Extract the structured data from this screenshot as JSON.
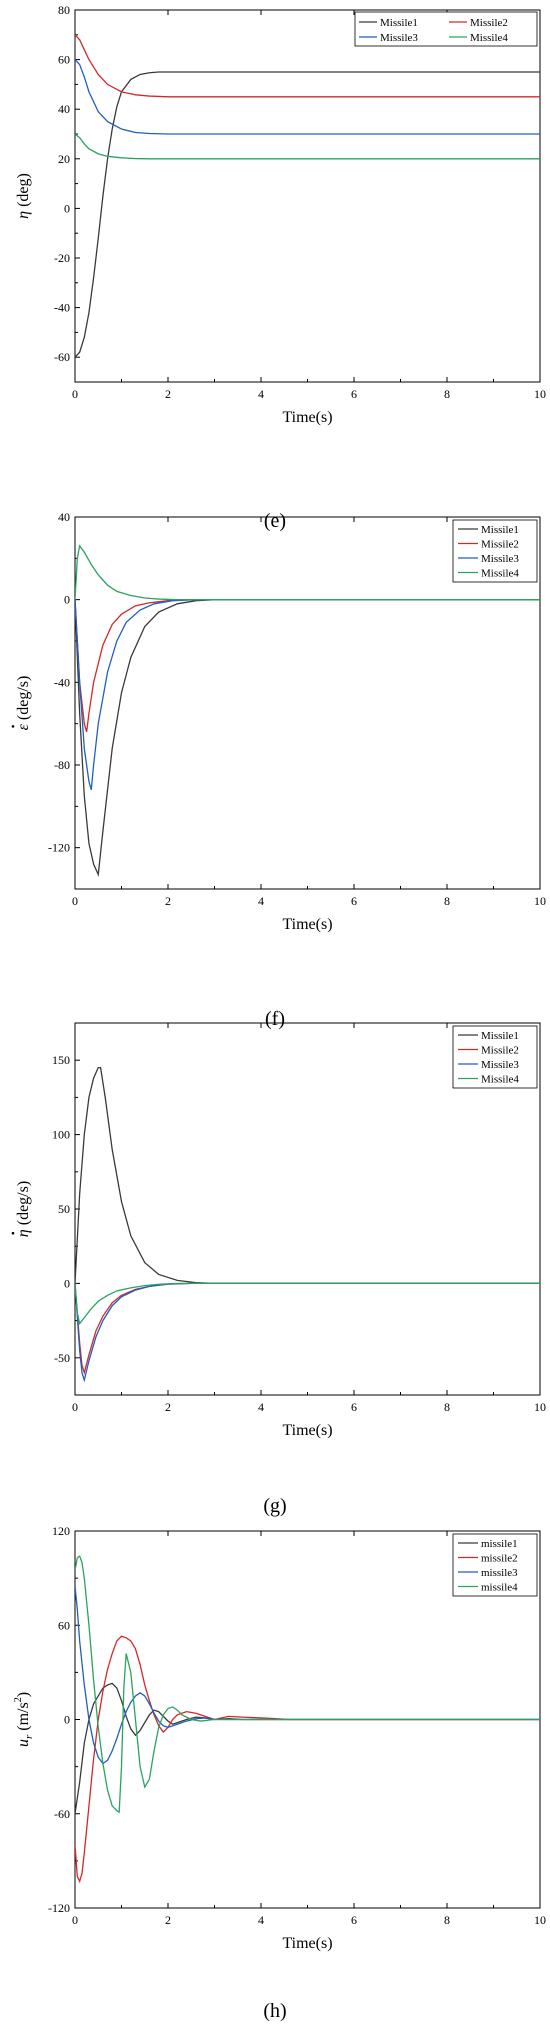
{
  "chart_data": [
    {
      "type": "line",
      "caption": "(e)",
      "xlabel": "Time(s)",
      "ylabel_main": "η",
      "ylabel_dot": false,
      "ylabel_sup": "",
      "ylabel_unit": " (deg)",
      "xlim": [
        0,
        10
      ],
      "ylim": [
        -70,
        80
      ],
      "xticks": [
        "0",
        "2",
        "4",
        "6",
        "8",
        "10"
      ],
      "yticks": [
        {
          "v": 80,
          "label": "80"
        },
        {
          "v": 60,
          "label": "60"
        },
        {
          "v": 40,
          "label": "40"
        },
        {
          "v": 20,
          "label": "20"
        },
        {
          "v": 0,
          "label": "0"
        },
        {
          "v": -20,
          "label": "-20"
        },
        {
          "v": -40,
          "label": "-40"
        },
        {
          "v": -60,
          "label": "-60"
        }
      ],
      "legend_layout": "2x2",
      "legend_position": "top-right",
      "series": [
        {
          "name": "Missile1",
          "color": "#3a3a3a",
          "x": [
            0,
            0.1,
            0.2,
            0.3,
            0.4,
            0.5,
            0.6,
            0.7,
            0.8,
            0.9,
            1.0,
            1.2,
            1.4,
            1.6,
            1.8,
            2.0,
            2.5,
            3,
            10
          ],
          "y": [
            -60,
            -58,
            -52,
            -42,
            -28,
            -12,
            5,
            20,
            32,
            41,
            47,
            52,
            54,
            54.7,
            55,
            55,
            55,
            55,
            55
          ]
        },
        {
          "name": "Missile2",
          "color": "#d62728",
          "x": [
            0,
            0.1,
            0.2,
            0.3,
            0.5,
            0.7,
            1.0,
            1.3,
            1.6,
            2.0,
            3,
            10
          ],
          "y": [
            70,
            68,
            64,
            60,
            54,
            50,
            47,
            45.8,
            45.3,
            45,
            45,
            45
          ]
        },
        {
          "name": "Missile3",
          "color": "#1f5fbf",
          "x": [
            0,
            0.1,
            0.2,
            0.3,
            0.5,
            0.7,
            1.0,
            1.3,
            1.6,
            2.0,
            3,
            10
          ],
          "y": [
            60,
            58,
            53,
            47,
            39,
            35,
            32,
            30.6,
            30.2,
            30,
            30,
            30
          ]
        },
        {
          "name": "Missile4",
          "color": "#2ca25f",
          "x": [
            0,
            0.1,
            0.2,
            0.3,
            0.5,
            0.7,
            1.0,
            1.3,
            1.6,
            2.0,
            3,
            10
          ],
          "y": [
            30,
            28.5,
            26,
            24,
            22,
            21,
            20.4,
            20.1,
            20,
            20,
            20,
            20
          ]
        }
      ]
    },
    {
      "type": "line",
      "caption": "(f)",
      "xlabel": "Time(s)",
      "ylabel_main": "ε",
      "ylabel_dot": true,
      "ylabel_sup": "",
      "ylabel_unit": " (deg/s)",
      "xlim": [
        0,
        10
      ],
      "ylim": [
        -140,
        40
      ],
      "xticks": [
        "0",
        "2",
        "4",
        "6",
        "8",
        "10"
      ],
      "yticks": [
        {
          "v": 40,
          "label": "40"
        },
        {
          "v": 0,
          "label": "0"
        },
        {
          "v": -40,
          "label": "-40"
        },
        {
          "v": -80,
          "label": "-80"
        },
        {
          "v": -120,
          "label": "-120"
        }
      ],
      "legend_layout": "4x1",
      "legend_position": "top-right",
      "series": [
        {
          "name": "Missile1",
          "color": "#3a3a3a",
          "x": [
            0,
            0.1,
            0.2,
            0.3,
            0.4,
            0.5,
            0.6,
            0.8,
            1.0,
            1.2,
            1.5,
            1.8,
            2.2,
            2.6,
            3,
            10
          ],
          "y": [
            0,
            -55,
            -95,
            -118,
            -128,
            -133,
            -112,
            -72,
            -45,
            -28,
            -13,
            -6,
            -2,
            -0.5,
            0,
            0
          ]
        },
        {
          "name": "Missile2",
          "color": "#d62728",
          "x": [
            0,
            0.1,
            0.2,
            0.25,
            0.3,
            0.4,
            0.6,
            0.8,
            1.0,
            1.3,
            1.6,
            2.0,
            2.5,
            3,
            10
          ],
          "y": [
            0,
            -40,
            -60,
            -64,
            -55,
            -40,
            -22,
            -12,
            -7,
            -3,
            -1.5,
            -0.5,
            0,
            0,
            0
          ]
        },
        {
          "name": "Missile3",
          "color": "#1f5fbf",
          "x": [
            0,
            0.1,
            0.2,
            0.3,
            0.35,
            0.4,
            0.5,
            0.7,
            0.9,
            1.1,
            1.4,
            1.7,
            2.1,
            2.6,
            3,
            10
          ],
          "y": [
            0,
            -40,
            -72,
            -88,
            -92,
            -80,
            -60,
            -35,
            -20,
            -11,
            -5,
            -2,
            -0.5,
            0,
            0,
            0
          ]
        },
        {
          "name": "Missile4",
          "color": "#2ca25f",
          "x": [
            0,
            0.05,
            0.1,
            0.2,
            0.35,
            0.5,
            0.7,
            0.9,
            1.2,
            1.5,
            1.8,
            2.2,
            3,
            10
          ],
          "y": [
            0,
            20,
            26,
            23,
            17,
            12,
            7,
            4,
            2,
            0.8,
            0.3,
            0,
            0,
            0
          ]
        }
      ]
    },
    {
      "type": "line",
      "caption": "(g)",
      "xlabel": "Time(s)",
      "ylabel_main": "η",
      "ylabel_dot": true,
      "ylabel_sup": "",
      "ylabel_unit": " (deg/s)",
      "xlim": [
        0,
        10
      ],
      "ylim": [
        -75,
        175
      ],
      "xticks": [
        "0",
        "2",
        "4",
        "6",
        "8",
        "10"
      ],
      "yticks": [
        {
          "v": 150,
          "label": "150"
        },
        {
          "v": 100,
          "label": "100"
        },
        {
          "v": 50,
          "label": "50"
        },
        {
          "v": 0,
          "label": "0"
        },
        {
          "v": -50,
          "label": "-50"
        }
      ],
      "legend_layout": "4x1",
      "legend_position": "top-right",
      "series": [
        {
          "name": "Missile1",
          "color": "#3a3a3a",
          "x": [
            0,
            0.1,
            0.2,
            0.3,
            0.4,
            0.5,
            0.55,
            0.65,
            0.8,
            1.0,
            1.2,
            1.5,
            1.8,
            2.2,
            2.6,
            3,
            10
          ],
          "y": [
            0,
            60,
            100,
            125,
            138,
            145,
            145,
            125,
            90,
            55,
            32,
            14,
            6,
            2,
            0.5,
            0,
            0
          ]
        },
        {
          "name": "Missile2",
          "color": "#d62728",
          "x": [
            0,
            0.1,
            0.15,
            0.2,
            0.3,
            0.45,
            0.6,
            0.8,
            1.0,
            1.3,
            1.6,
            2.0,
            2.5,
            3,
            10
          ],
          "y": [
            0,
            -40,
            -55,
            -60,
            -48,
            -32,
            -22,
            -13,
            -8,
            -4,
            -2,
            -0.5,
            0,
            0,
            0
          ]
        },
        {
          "name": "Missile3",
          "color": "#1f5fbf",
          "x": [
            0,
            0.1,
            0.15,
            0.2,
            0.3,
            0.45,
            0.6,
            0.8,
            1.0,
            1.3,
            1.6,
            2.0,
            2.5,
            3,
            10
          ],
          "y": [
            0,
            -45,
            -60,
            -65,
            -52,
            -36,
            -25,
            -15,
            -9,
            -4.5,
            -2,
            -0.5,
            0,
            0,
            0
          ]
        },
        {
          "name": "Missile4",
          "color": "#2ca25f",
          "x": [
            0,
            0.05,
            0.1,
            0.2,
            0.35,
            0.5,
            0.7,
            0.9,
            1.2,
            1.5,
            1.8,
            2.2,
            3,
            10
          ],
          "y": [
            0,
            -20,
            -27,
            -23,
            -17,
            -12,
            -8,
            -5,
            -3,
            -1.5,
            -0.6,
            0,
            0,
            0
          ]
        }
      ]
    },
    {
      "type": "line",
      "caption": "(h)",
      "xlabel": "Time(s)",
      "ylabel_main": "u",
      "ylabel_dot": false,
      "ylabel_sub": "r",
      "ylabel_sup": "2",
      "ylabel_unit_pre": " (m/s",
      "ylabel_unit_post": ")",
      "xlim": [
        0,
        10
      ],
      "ylim": [
        -120,
        120
      ],
      "xticks": [
        "0",
        "2",
        "4",
        "6",
        "8",
        "10"
      ],
      "yticks": [
        {
          "v": 120,
          "label": "120"
        },
        {
          "v": 60,
          "label": "60"
        },
        {
          "v": 0,
          "label": "0"
        },
        {
          "v": -60,
          "label": "-60"
        },
        {
          "v": -120,
          "label": "-120"
        }
      ],
      "legend_layout": "4x1",
      "legend_position": "top-right",
      "series": [
        {
          "name": "missile1",
          "color": "#3a3a3a",
          "x": [
            0,
            0.1,
            0.2,
            0.3,
            0.4,
            0.5,
            0.6,
            0.7,
            0.8,
            0.9,
            1.0,
            1.1,
            1.2,
            1.3,
            1.4,
            1.5,
            1.6,
            1.7,
            1.8,
            1.9,
            2.0,
            2.1,
            2.2,
            2.4,
            2.6,
            2.8,
            3.0,
            3.3,
            3.6,
            4.0,
            10
          ],
          "y": [
            -60,
            -40,
            -15,
            0,
            10,
            15,
            20,
            22,
            23,
            20,
            12,
            2,
            -6,
            -10,
            -7,
            -2,
            3,
            6,
            5,
            2,
            -1,
            -3,
            -2,
            0,
            1.5,
            1,
            0,
            0.5,
            0,
            0,
            0
          ]
        },
        {
          "name": "missile2",
          "color": "#d62728",
          "x": [
            0,
            0.05,
            0.1,
            0.15,
            0.2,
            0.3,
            0.4,
            0.5,
            0.6,
            0.7,
            0.8,
            0.9,
            1.0,
            1.1,
            1.2,
            1.3,
            1.4,
            1.5,
            1.6,
            1.7,
            1.8,
            1.9,
            2.0,
            2.1,
            2.2,
            2.4,
            2.6,
            2.8,
            3.0,
            3.3,
            3.6,
            4.0,
            4.3,
            4.6,
            10
          ],
          "y": [
            -80,
            -100,
            -103,
            -98,
            -85,
            -55,
            -25,
            0,
            18,
            32,
            42,
            50,
            53,
            52,
            50,
            45,
            35,
            22,
            12,
            3,
            -4,
            -8,
            -5,
            0,
            3,
            5,
            4,
            2,
            0,
            2,
            1.5,
            1,
            0.5,
            0,
            0
          ]
        },
        {
          "name": "missile3",
          "color": "#1f5fbf",
          "x": [
            0,
            0.05,
            0.1,
            0.2,
            0.3,
            0.4,
            0.5,
            0.6,
            0.7,
            0.8,
            0.9,
            1.0,
            1.1,
            1.2,
            1.3,
            1.4,
            1.5,
            1.6,
            1.7,
            1.8,
            1.9,
            2.0,
            2.2,
            2.4,
            2.6,
            2.8,
            3.0,
            3.5,
            4.0,
            10
          ],
          "y": [
            85,
            70,
            50,
            22,
            0,
            -15,
            -24,
            -28,
            -26,
            -20,
            -12,
            -3,
            5,
            11,
            15,
            17,
            15,
            10,
            4,
            -1,
            -4,
            -5,
            -3,
            -1,
            0.5,
            1,
            0,
            0,
            0,
            0
          ]
        },
        {
          "name": "missile4",
          "color": "#2ca25f",
          "x": [
            0,
            0.05,
            0.1,
            0.15,
            0.2,
            0.3,
            0.4,
            0.5,
            0.6,
            0.7,
            0.8,
            0.9,
            0.95,
            1.0,
            1.05,
            1.1,
            1.2,
            1.3,
            1.4,
            1.5,
            1.6,
            1.7,
            1.8,
            1.9,
            2.0,
            2.1,
            2.2,
            2.3,
            2.5,
            2.7,
            3.0,
            3.3,
            10
          ],
          "y": [
            95,
            103,
            104,
            100,
            90,
            60,
            25,
            -5,
            -28,
            -45,
            -55,
            -58,
            -59,
            -30,
            20,
            42,
            30,
            0,
            -30,
            -43,
            -38,
            -20,
            -5,
            3,
            7,
            8,
            6,
            3,
            0,
            -1,
            0,
            0,
            0
          ]
        }
      ]
    }
  ]
}
